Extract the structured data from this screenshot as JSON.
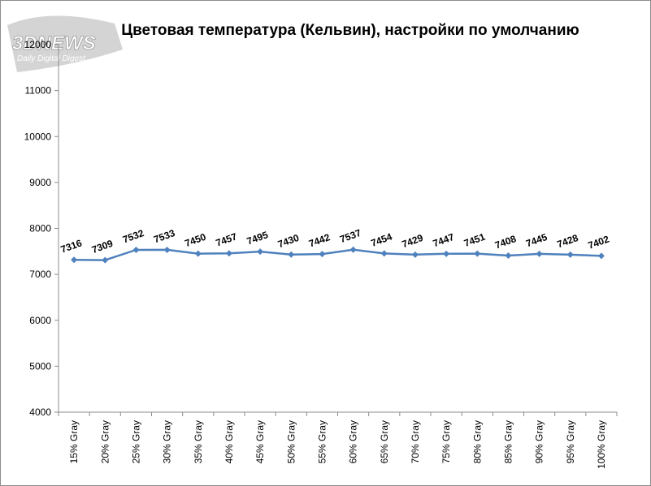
{
  "watermark": {
    "brand": "3DNEWS",
    "tagline": "Daily Digital Digest"
  },
  "chart_data": {
    "type": "line",
    "title": "Цветовая температура (Кельвин), настройки по умолчанию",
    "xlabel": "",
    "ylabel": "",
    "categories": [
      "15% Gray",
      "20% Gray",
      "25% Gray",
      "30% Gray",
      "35% Gray",
      "40% Gray",
      "45% Gray",
      "50% Gray",
      "55% Gray",
      "60% Gray",
      "65% Gray",
      "70% Gray",
      "75% Gray",
      "80% Gray",
      "85% Gray",
      "90% Gray",
      "95% Gray",
      "100% Gray"
    ],
    "series": [
      {
        "values": [
          7316,
          7309,
          7532,
          7533,
          7450,
          7457,
          7495,
          7430,
          7442,
          7537,
          7454,
          7429,
          7447,
          7451,
          7408,
          7445,
          7428,
          7402
        ],
        "color": "#4f81bd"
      }
    ],
    "ylim": [
      4000,
      12000
    ],
    "yticks": [
      4000,
      5000,
      6000,
      7000,
      8000,
      9000,
      10000,
      11000,
      12000
    ],
    "grid": false,
    "legend": "none",
    "data_labels": true
  }
}
